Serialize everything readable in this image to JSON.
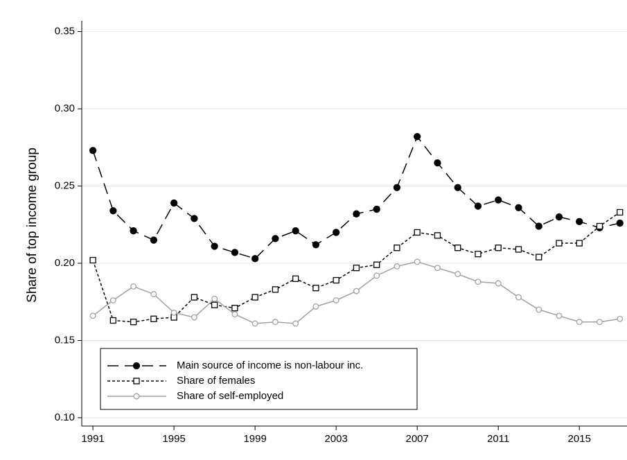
{
  "chart_data": {
    "type": "line",
    "y_label": "Share of top income group",
    "x": [
      1991,
      1992,
      1993,
      1994,
      1995,
      1996,
      1997,
      1998,
      1999,
      2000,
      2001,
      2002,
      2003,
      2004,
      2005,
      2006,
      2007,
      2008,
      2009,
      2010,
      2011,
      2012,
      2013,
      2014,
      2015,
      2016,
      2017
    ],
    "series": [
      {
        "name": "Main source of income is non-labour inc.",
        "color": "#000000",
        "line_style": "longdash",
        "marker": "filled-circle",
        "values": [
          0.273,
          0.234,
          0.221,
          0.215,
          0.239,
          0.229,
          0.211,
          0.207,
          0.203,
          0.216,
          0.221,
          0.212,
          0.22,
          0.232,
          0.235,
          0.249,
          0.282,
          0.265,
          0.249,
          0.237,
          0.241,
          0.236,
          0.224,
          0.23,
          0.227,
          0.223,
          0.226
        ]
      },
      {
        "name": "Share of females",
        "color": "#000000",
        "line_style": "shortdash",
        "marker": "hollow-square",
        "values": [
          0.202,
          0.163,
          0.162,
          0.164,
          0.165,
          0.178,
          0.173,
          0.171,
          0.178,
          0.183,
          0.19,
          0.184,
          0.189,
          0.197,
          0.199,
          0.21,
          0.22,
          0.218,
          0.21,
          0.206,
          0.21,
          0.209,
          0.204,
          0.213,
          0.213,
          0.224,
          0.233
        ]
      },
      {
        "name": "Share of self-employed",
        "color": "#a0a0a0",
        "line_style": "solid",
        "marker": "hollow-circle",
        "values": [
          0.166,
          0.176,
          0.185,
          0.18,
          0.168,
          0.165,
          0.177,
          0.167,
          0.161,
          0.162,
          0.161,
          0.172,
          0.176,
          0.182,
          0.192,
          0.198,
          0.201,
          0.197,
          0.193,
          0.188,
          0.187,
          0.178,
          0.17,
          0.166,
          0.162,
          0.162,
          0.164
        ]
      }
    ],
    "xlim": [
      1990.45,
      2017.35
    ],
    "xticks": [
      1991,
      1995,
      1999,
      2003,
      2007,
      2011,
      2015
    ],
    "ylim": [
      0.0946,
      0.357
    ],
    "yticks": [
      {
        "value": 0.1,
        "label": "0.10"
      },
      0.15,
      {
        "value": 0.2,
        "label": "0.20"
      },
      0.25,
      {
        "value": 0.3,
        "label": "0.30"
      },
      0.35
    ],
    "grid": true,
    "legend_position": "lower-left"
  }
}
